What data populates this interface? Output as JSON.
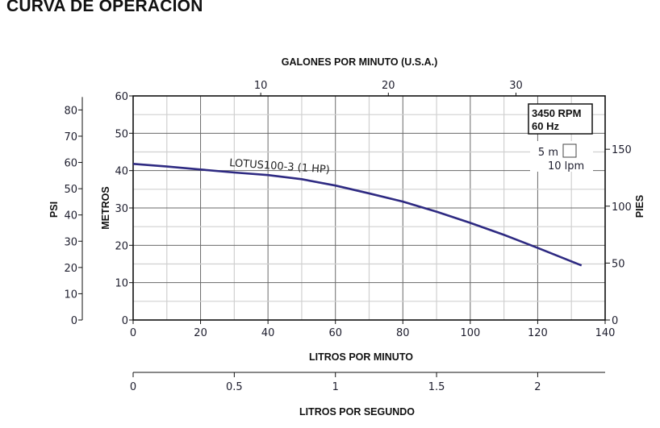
{
  "chart_data": {
    "type": "line",
    "title": "CURVA DE OPERACION",
    "xlabel": "LITROS POR MINUTO",
    "ylabel": "METROS",
    "xlim": [
      0,
      140
    ],
    "ylim": [
      0,
      60
    ],
    "x_ticks": [
      0,
      20,
      40,
      60,
      80,
      100,
      120,
      140
    ],
    "y_ticks": [
      0,
      10,
      20,
      30,
      40,
      50,
      60
    ],
    "grid": true,
    "series": [
      {
        "name": "LOTUS100-3 (1 HP)",
        "color": "#2e2a82",
        "x": [
          0,
          10,
          20,
          30,
          40,
          50,
          60,
          70,
          80,
          90,
          100,
          110,
          120,
          133
        ],
        "y": [
          41.8,
          41.1,
          40.3,
          39.5,
          38.8,
          37.7,
          36.0,
          33.9,
          31.7,
          29.0,
          26.0,
          22.8,
          19.3,
          14.6
        ]
      }
    ],
    "secondary_axes": {
      "top": {
        "label": "GALONES POR MINUTO (U.S.A.)",
        "ticks": [
          10,
          20,
          30
        ]
      },
      "left": {
        "label": "PSI",
        "ticks": [
          0,
          10,
          20,
          30,
          40,
          50,
          60,
          70,
          80
        ]
      },
      "right": {
        "label": "PIES",
        "ticks": [
          0,
          50,
          100,
          150
        ]
      },
      "bottom": {
        "label": "LITROS POR SEGUNDO",
        "ticks": [
          "0",
          "0.5",
          "1",
          "1.5",
          "2"
        ]
      }
    },
    "info_box": {
      "line1": "3450 RPM",
      "line2": "60 Hz"
    },
    "scale_legend": {
      "vertical": "5 m",
      "horizontal": "10 lpm"
    }
  }
}
